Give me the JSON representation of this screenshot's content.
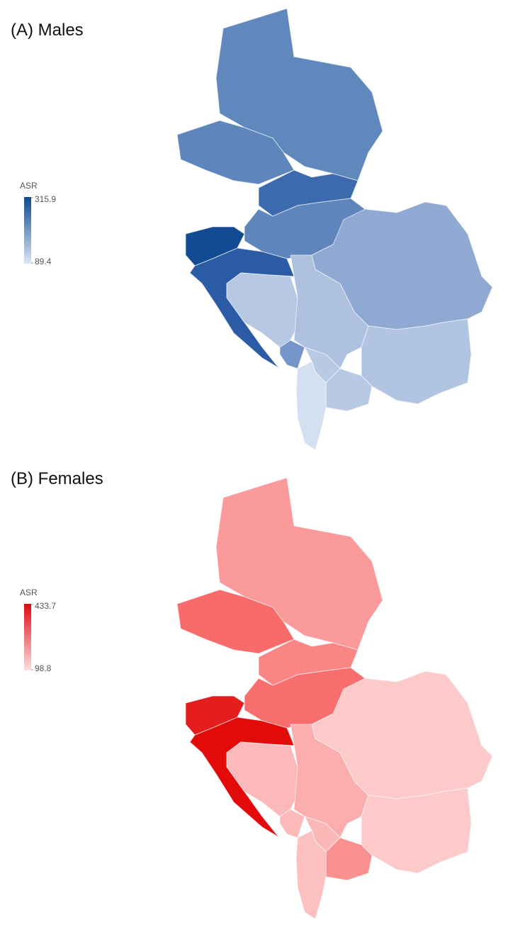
{
  "panels": [
    {
      "title": "(A) Males",
      "legend": {
        "title": "ASR",
        "max": 315.9,
        "min": 89.4,
        "color_max": "#0d4a90",
        "color_min": "#dce6f3"
      }
    },
    {
      "title": "(B) Females",
      "legend": {
        "title": "ASR",
        "max": 433.7,
        "min": 98.8,
        "color_max": "#e00a12",
        "color_min": "#fde0e0"
      }
    }
  ]
}
